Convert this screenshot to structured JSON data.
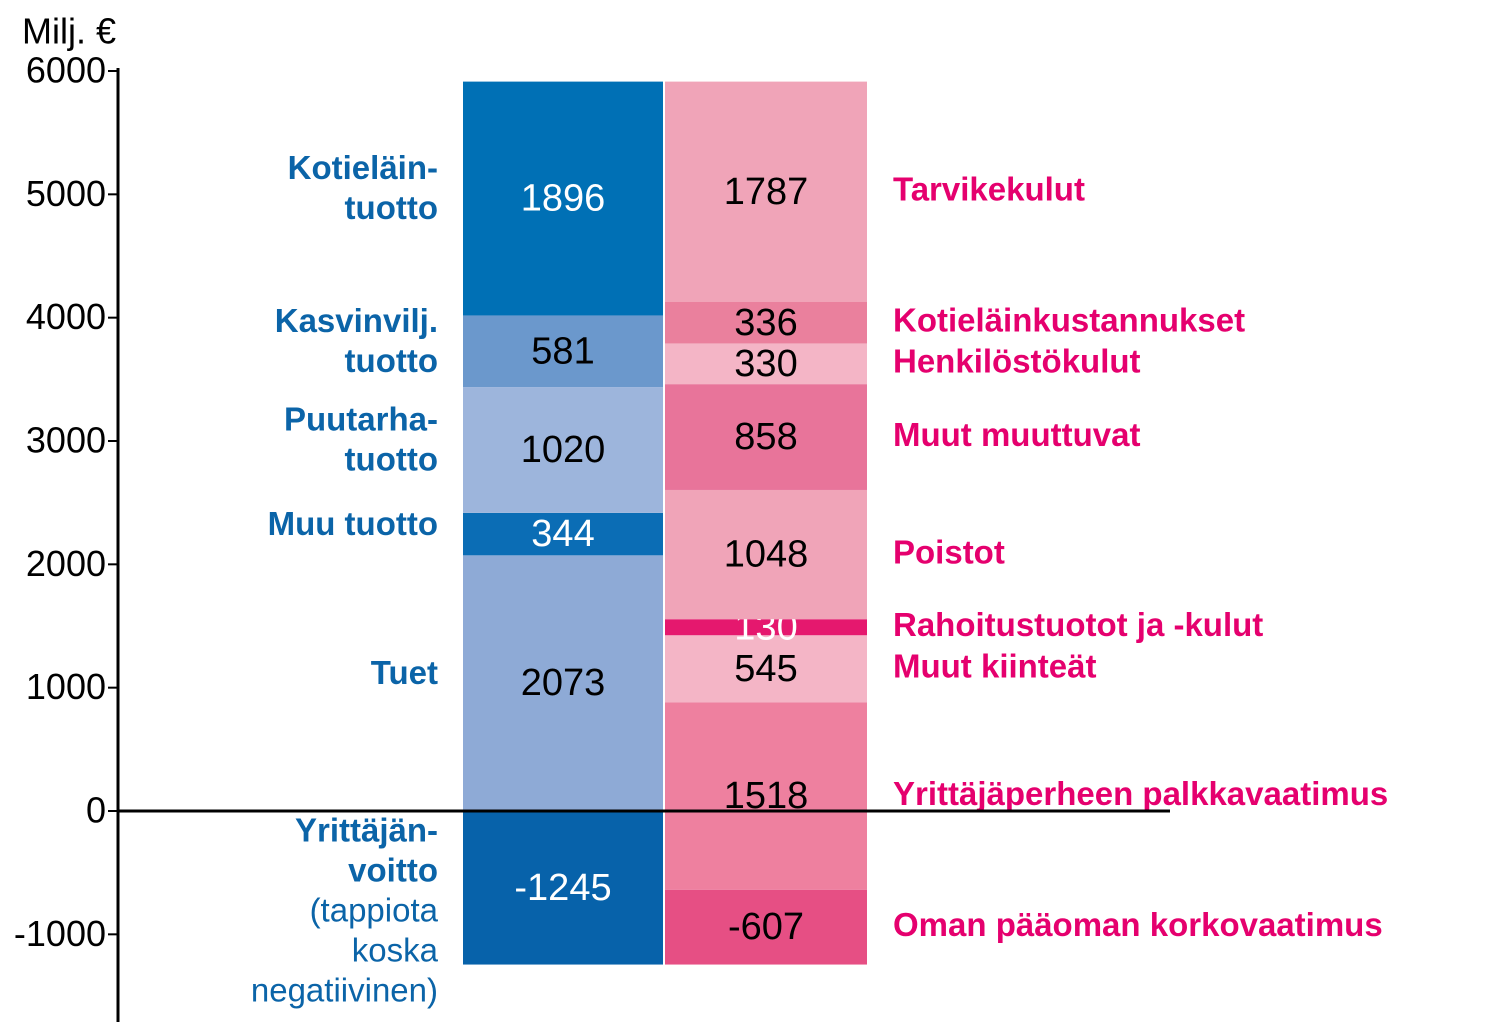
{
  "chart_data": {
    "type": "stacked_columns",
    "y_label": "Milj. €",
    "ylim": [
      -1700,
      6000
    ],
    "yticks": [
      6000,
      5000,
      4000,
      3000,
      2000,
      1000,
      0,
      -1000
    ],
    "stacks": [
      {
        "label_color": "#0b64a8",
        "segments": [
          {
            "label": [
              "Yrittäjän-",
              "voitto"
            ],
            "note": [
              "(tappiota",
              "koska",
              "negatiivinen)"
            ],
            "value": -1245,
            "color": "#0762aa"
          },
          {
            "label": [
              "Tuet"
            ],
            "value": 2073,
            "color": "#8eaad6"
          },
          {
            "label": [
              "Muu tuotto"
            ],
            "value": 344,
            "color": "#0b6db5"
          },
          {
            "label": [
              "Puutarha-",
              "tuotto"
            ],
            "value": 1020,
            "color": "#9db5dc"
          },
          {
            "label": [
              "Kasvinvilj.",
              "tuotto"
            ],
            "value": 581,
            "color": "#6b98cc"
          },
          {
            "label": [
              "Kotieläin-",
              "tuotto"
            ],
            "value": 1896,
            "color": "#0070b5"
          }
        ]
      },
      {
        "label_color": "#e5006e",
        "segments": [
          {
            "label": [
              "Oman pääoman korkovaatimus"
            ],
            "value": -607,
            "color": "#e64f84"
          },
          {
            "label": [
              "Yrittäjäperheen palkkavaatimus"
            ],
            "value": 1518,
            "color": "#ee809f"
          },
          {
            "label": [
              "Muut kiinteät"
            ],
            "value": 545,
            "color": "#f4b5c6"
          },
          {
            "label": [
              "Rahoitustuotot ja -kulut"
            ],
            "value": 130,
            "color": "#e5186e"
          },
          {
            "label": [
              "Poistot"
            ],
            "value": 1048,
            "color": "#f0a4b8"
          },
          {
            "label": [
              "Muut muuttuvat"
            ],
            "value": 858,
            "color": "#e8749a"
          },
          {
            "label": [
              "Henkilöstökulut"
            ],
            "value": 330,
            "color": "#f4b5c6"
          },
          {
            "label": [
              "Kotieläinkustannukset"
            ],
            "value": 336,
            "color": "#ea809d"
          },
          {
            "label": [
              "Tarvikekulut"
            ],
            "value": 1787,
            "color": "#f0a4b8"
          }
        ]
      }
    ]
  }
}
